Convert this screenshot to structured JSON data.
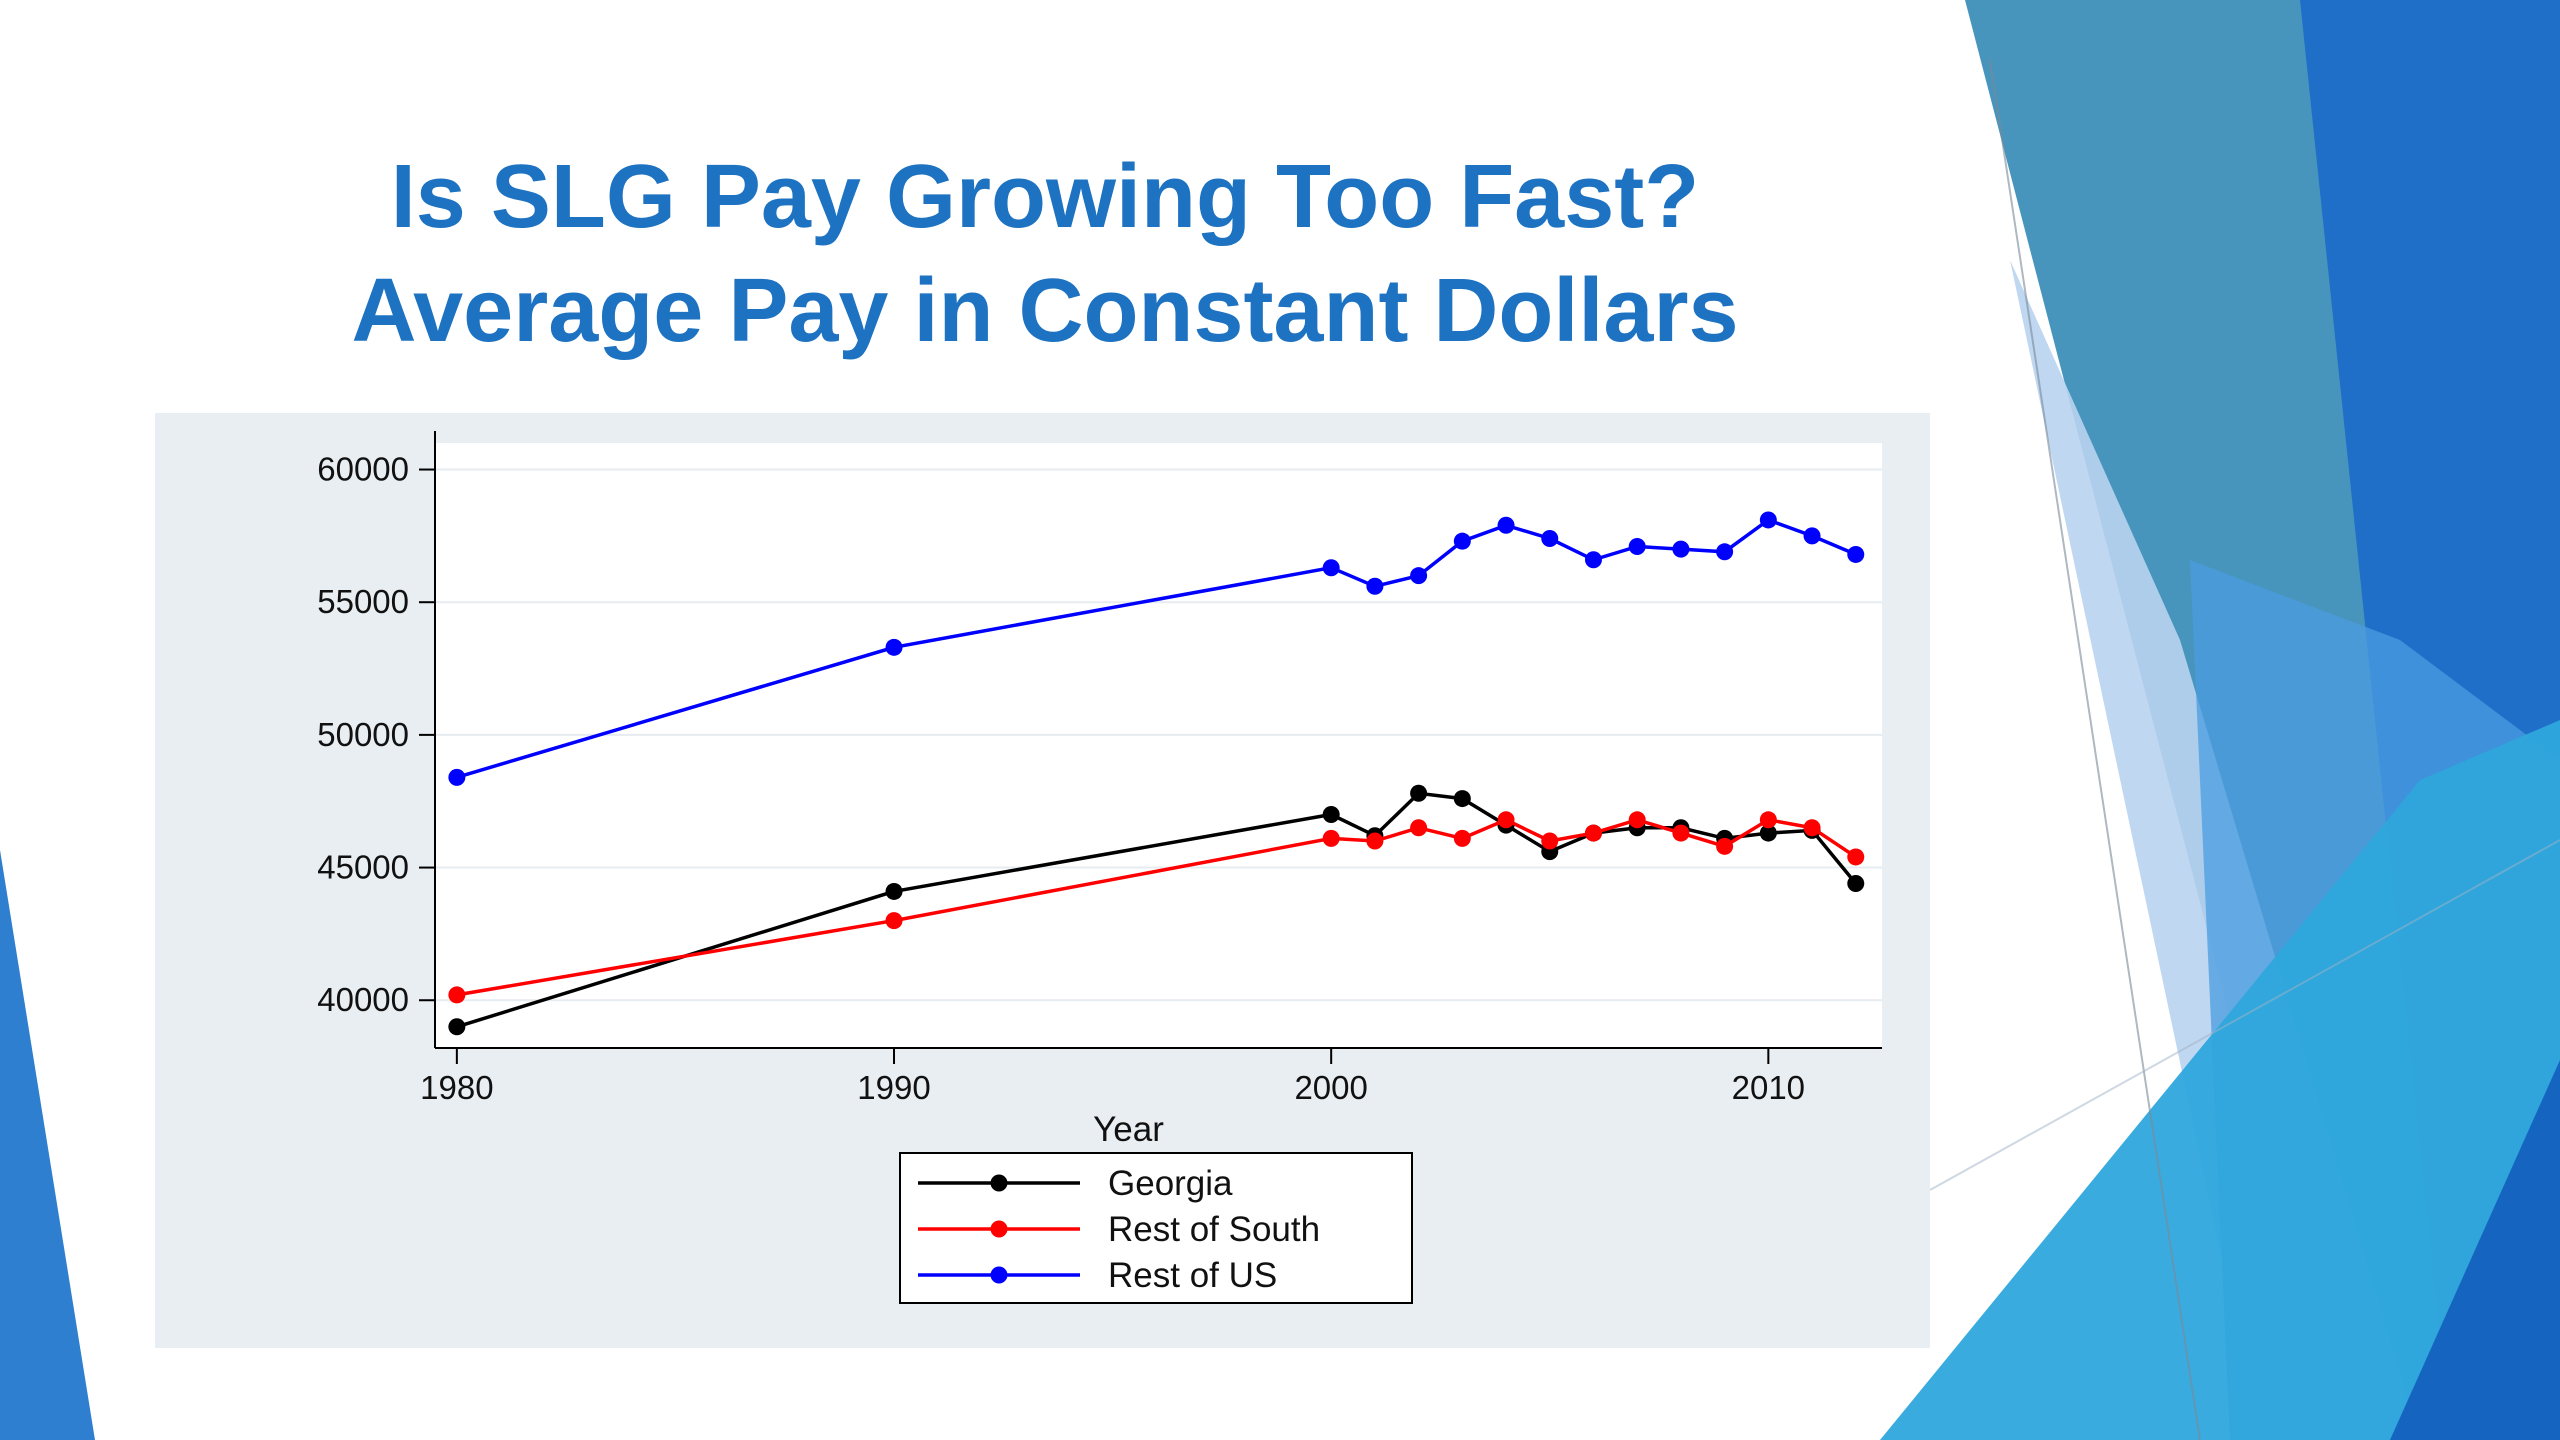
{
  "slide": {
    "title_line1": "Is SLG Pay Growing Too Fast?",
    "title_line2": "Average Pay in Constant Dollars",
    "title_color": "#1d72c2"
  },
  "chart_data": {
    "type": "line",
    "title": "",
    "xlabel": "Year",
    "ylabel": "",
    "xlim": [
      1979.5,
      2012.6
    ],
    "ylim": [
      38200,
      61000
    ],
    "xticks": [
      1980,
      1990,
      2000,
      2010
    ],
    "yticks": [
      40000,
      45000,
      50000,
      55000,
      60000
    ],
    "grid": true,
    "legend_position": "bottom-center",
    "x": [
      1980,
      1990,
      2000,
      2001,
      2002,
      2003,
      2004,
      2005,
      2006,
      2007,
      2008,
      2009,
      2010,
      2011,
      2012
    ],
    "series": [
      {
        "name": "Georgia",
        "color": "#000000",
        "values": [
          39000,
          44100,
          47000,
          46200,
          47800,
          47600,
          46600,
          45600,
          46300,
          46500,
          46500,
          46100,
          46300,
          46400,
          44400
        ]
      },
      {
        "name": "Rest of South",
        "color": "#ff0000",
        "values": [
          40200,
          43000,
          46100,
          46000,
          46500,
          46100,
          46800,
          46000,
          46300,
          46800,
          46300,
          45800,
          46800,
          46500,
          45400
        ]
      },
      {
        "name": "Rest of US",
        "color": "#0000ff",
        "values": [
          48400,
          53300,
          56300,
          55600,
          56000,
          57300,
          57900,
          57400,
          56600,
          57100,
          57000,
          56900,
          58100,
          57500,
          56800
        ]
      }
    ]
  }
}
